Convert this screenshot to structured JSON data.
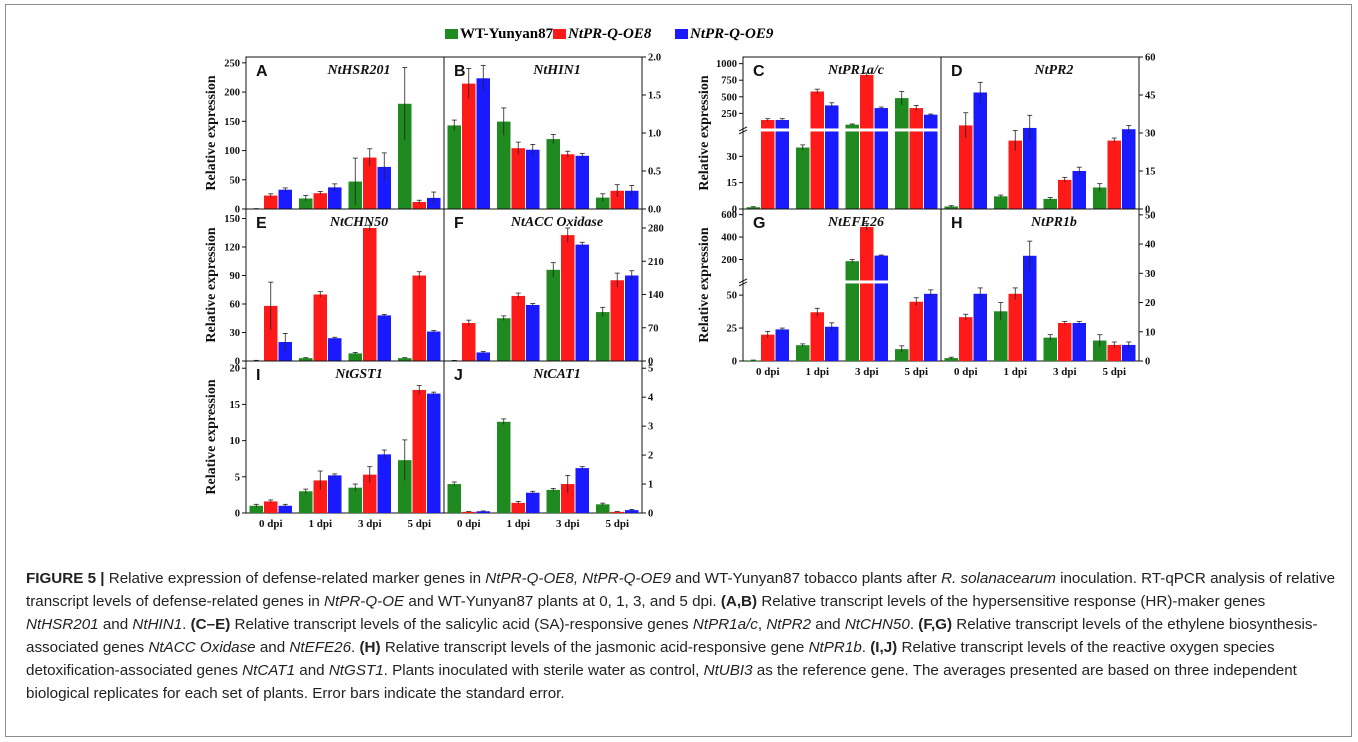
{
  "colors": {
    "WT": "#1f8a1f",
    "OE8": "#ff1a1a",
    "OE9": "#1a1aff"
  },
  "legend": [
    {
      "key": "WT",
      "label": "WT-Yunyan87",
      "italic": false
    },
    {
      "key": "OE8",
      "label": "NtPR-Q-OE8",
      "italic": true
    },
    {
      "key": "OE9",
      "label": "NtPR-Q-OE9",
      "italic": true
    }
  ],
  "ylabel": "Relative expression",
  "chart_data": [
    {
      "id": "A",
      "gene": "NtHSR201",
      "type": "bar",
      "categories": [
        "0 dpi",
        "1 dpi",
        "3 dpi",
        "5 dpi"
      ],
      "ylim": [
        0,
        260
      ],
      "ticks": [
        0,
        50,
        100,
        150,
        200,
        250
      ],
      "tick_labels": [
        "0",
        "50",
        "100",
        "150",
        "200",
        "250"
      ],
      "axis": "left",
      "series": [
        {
          "name": "WT-Yunyan87",
          "values": [
            0.5,
            18,
            47,
            180
          ],
          "err": [
            0.2,
            5,
            40,
            62
          ]
        },
        {
          "name": "NtPR-Q-OE8",
          "values": [
            23,
            27,
            88,
            12
          ],
          "err": [
            3,
            3,
            15,
            3
          ]
        },
        {
          "name": "NtPR-Q-OE9",
          "values": [
            33,
            37,
            72,
            19
          ],
          "err": [
            3,
            6,
            24,
            10
          ]
        }
      ]
    },
    {
      "id": "B",
      "gene": "NtHIN1",
      "type": "bar",
      "categories": [
        "0 dpi",
        "1 dpi",
        "3 dpi",
        "5 dpi"
      ],
      "ylim": [
        0,
        2.0
      ],
      "ticks": [
        0,
        0.5,
        1.0,
        1.5,
        2.0
      ],
      "tick_labels": [
        "0.0",
        "0.5",
        "1.0",
        "1.5",
        "2.0"
      ],
      "axis": "right",
      "series": [
        {
          "name": "WT-Yunyan87",
          "values": [
            1.1,
            1.15,
            0.92,
            0.15
          ],
          "err": [
            0.07,
            0.18,
            0.06,
            0.05
          ]
        },
        {
          "name": "NtPR-Q-OE8",
          "values": [
            1.65,
            0.8,
            0.72,
            0.24
          ],
          "err": [
            0.2,
            0.08,
            0.04,
            0.08
          ]
        },
        {
          "name": "NtPR-Q-OE9",
          "values": [
            1.72,
            0.78,
            0.7,
            0.24
          ],
          "err": [
            0.17,
            0.07,
            0.03,
            0.07
          ]
        }
      ]
    },
    {
      "id": "C",
      "gene": "NtPR1a/c",
      "type": "bar",
      "categories": [
        "0 dpi",
        "1 dpi",
        "3 dpi",
        "5 dpi"
      ],
      "broken_axis": {
        "lower": [
          0,
          45
        ],
        "upper": [
          0,
          1100
        ]
      },
      "ticks": [
        0,
        15,
        30,
        250,
        500,
        750,
        1000
      ],
      "tick_labels": [
        "0",
        "15",
        "30",
        "250",
        "500",
        "750",
        "1000"
      ],
      "axis": "left",
      "series": [
        {
          "name": "WT-Yunyan87",
          "values": [
            1,
            35,
            80,
            480
          ],
          "err": [
            0.3,
            1.5,
            10,
            100
          ]
        },
        {
          "name": "NtPR-Q-OE8",
          "values": [
            150,
            580,
            830,
            330
          ],
          "err": [
            20,
            35,
            30,
            40
          ]
        },
        {
          "name": "NtPR-Q-OE9",
          "values": [
            150,
            370,
            330,
            230
          ],
          "err": [
            20,
            40,
            15,
            10
          ]
        }
      ]
    },
    {
      "id": "D",
      "gene": "NtPR2",
      "type": "bar",
      "categories": [
        "0 dpi",
        "1 dpi",
        "3 dpi",
        "5 dpi"
      ],
      "ylim": [
        0,
        60
      ],
      "ticks": [
        0,
        15,
        30,
        45,
        60
      ],
      "tick_labels": [
        "0",
        "15",
        "30",
        "45",
        "60"
      ],
      "axis": "right",
      "series": [
        {
          "name": "WT-Yunyan87",
          "values": [
            1,
            5,
            4,
            8.5
          ],
          "err": [
            0.3,
            0.5,
            0.5,
            1.5
          ]
        },
        {
          "name": "NtPR-Q-OE8",
          "values": [
            33,
            27,
            11.5,
            27
          ],
          "err": [
            5,
            4,
            1,
            1
          ]
        },
        {
          "name": "NtPR-Q-OE9",
          "values": [
            46,
            32,
            15,
            31.5
          ],
          "err": [
            4,
            5,
            1.5,
            1.5
          ]
        }
      ]
    },
    {
      "id": "E",
      "gene": "NtCHN50",
      "type": "bar",
      "categories": [
        "0 dpi",
        "1 dpi",
        "3 dpi",
        "5 dpi"
      ],
      "ylim": [
        0,
        160
      ],
      "ticks": [
        0,
        30,
        60,
        90,
        120,
        150
      ],
      "tick_labels": [
        "0",
        "30",
        "60",
        "90",
        "120",
        "150"
      ],
      "axis": "left",
      "series": [
        {
          "name": "WT-Yunyan87",
          "values": [
            0.5,
            3,
            8,
            3
          ],
          "err": [
            0.2,
            0.5,
            1,
            0.5
          ]
        },
        {
          "name": "NtPR-Q-OE8",
          "values": [
            58,
            70,
            140,
            90
          ],
          "err": [
            25,
            3,
            3,
            4
          ]
        },
        {
          "name": "NtPR-Q-OE9",
          "values": [
            20,
            24,
            48,
            31
          ],
          "err": [
            9,
            1,
            1,
            1
          ]
        }
      ]
    },
    {
      "id": "F",
      "gene": "NtACC Oxidase",
      "type": "bar",
      "categories": [
        "0 dpi",
        "1 dpi",
        "3 dpi",
        "5 dpi"
      ],
      "ylim": [
        0,
        320
      ],
      "ticks": [
        0,
        70,
        140,
        210,
        280
      ],
      "tick_labels": [
        "0",
        "70",
        "140",
        "210",
        "280"
      ],
      "axis": "right",
      "series": [
        {
          "name": "WT-Yunyan87",
          "values": [
            1,
            90,
            192,
            103
          ],
          "err": [
            0.3,
            5,
            15,
            10
          ]
        },
        {
          "name": "NtPR-Q-OE8",
          "values": [
            80,
            137,
            265,
            170
          ],
          "err": [
            6,
            6,
            15,
            15
          ]
        },
        {
          "name": "NtPR-Q-OE9",
          "values": [
            18,
            118,
            245,
            180
          ],
          "err": [
            2,
            3,
            5,
            10
          ]
        }
      ]
    },
    {
      "id": "G",
      "gene": "NtEFE26",
      "type": "bar",
      "categories": [
        "0 dpi",
        "1 dpi",
        "3 dpi",
        "5 dpi"
      ],
      "broken_axis": {
        "lower": [
          0,
          60
        ],
        "upper": [
          0,
          650
        ]
      },
      "ticks": [
        0,
        25,
        50,
        200,
        400,
        600
      ],
      "tick_labels": [
        "0",
        "25",
        "50",
        "200",
        "400",
        "600"
      ],
      "axis": "left",
      "series": [
        {
          "name": "WT-Yunyan87",
          "values": [
            0.5,
            12,
            185,
            9
          ],
          "err": [
            0.2,
            1,
            15,
            2.5
          ]
        },
        {
          "name": "NtPR-Q-OE8",
          "values": [
            20,
            37,
            490,
            45
          ],
          "err": [
            2.5,
            3,
            30,
            3
          ]
        },
        {
          "name": "NtPR-Q-OE9",
          "values": [
            24,
            26,
            235,
            51
          ],
          "err": [
            1,
            3,
            5,
            3
          ]
        }
      ]
    },
    {
      "id": "H",
      "gene": "NtPR1b",
      "type": "bar",
      "categories": [
        "0 dpi",
        "1 dpi",
        "3 dpi",
        "5 dpi"
      ],
      "ylim": [
        0,
        52
      ],
      "ticks": [
        0,
        10,
        20,
        30,
        40,
        50
      ],
      "tick_labels": [
        "0",
        "10",
        "20",
        "30",
        "40",
        "50"
      ],
      "axis": "right",
      "series": [
        {
          "name": "WT-Yunyan87",
          "values": [
            1,
            17,
            8,
            7
          ],
          "err": [
            0.3,
            3,
            1,
            2
          ]
        },
        {
          "name": "NtPR-Q-OE8",
          "values": [
            15,
            23,
            13,
            5.5
          ],
          "err": [
            1,
            2,
            0.5,
            1
          ]
        },
        {
          "name": "NtPR-Q-OE9",
          "values": [
            23,
            36,
            13,
            5.5
          ],
          "err": [
            2,
            5,
            0.5,
            1
          ]
        }
      ]
    },
    {
      "id": "I",
      "gene": "NtGST1",
      "type": "bar",
      "categories": [
        "0 dpi",
        "1 dpi",
        "3 dpi",
        "5 dpi"
      ],
      "ylim": [
        0,
        21
      ],
      "ticks": [
        0,
        5,
        10,
        15,
        20
      ],
      "tick_labels": [
        "0",
        "5",
        "10",
        "15",
        "20"
      ],
      "axis": "left",
      "series": [
        {
          "name": "WT-Yunyan87",
          "values": [
            1,
            3,
            3.5,
            7.3
          ],
          "err": [
            0.2,
            0.3,
            0.5,
            2.8
          ]
        },
        {
          "name": "NtPR-Q-OE8",
          "values": [
            1.6,
            4.5,
            5.3,
            17
          ],
          "err": [
            0.2,
            1.3,
            1.1,
            0.6
          ]
        },
        {
          "name": "NtPR-Q-OE9",
          "values": [
            1,
            5.2,
            8.1,
            16.5
          ],
          "err": [
            0.2,
            0.2,
            0.6,
            0.2
          ]
        }
      ]
    },
    {
      "id": "J",
      "gene": "NtCAT1",
      "type": "bar",
      "categories": [
        "0 dpi",
        "1 dpi",
        "3 dpi",
        "5 dpi"
      ],
      "ylim": [
        0,
        5.25
      ],
      "ticks": [
        0,
        1,
        2,
        3,
        4,
        5
      ],
      "tick_labels": [
        "0",
        "1",
        "2",
        "3",
        "4",
        "5"
      ],
      "axis": "right",
      "series": [
        {
          "name": "WT-Yunyan87",
          "values": [
            1,
            3.15,
            0.8,
            0.3
          ],
          "err": [
            0.07,
            0.1,
            0.05,
            0.04
          ]
        },
        {
          "name": "NtPR-Q-OE8",
          "values": [
            0.04,
            0.35,
            1,
            0.04
          ],
          "err": [
            0.01,
            0.05,
            0.3,
            0.01
          ]
        },
        {
          "name": "NtPR-Q-OE9",
          "values": [
            0.06,
            0.7,
            1.55,
            0.1
          ],
          "err": [
            0.01,
            0.05,
            0.05,
            0.02
          ]
        }
      ]
    }
  ],
  "caption": [
    {
      "t": "FIGURE 5 |",
      "b": true
    },
    {
      "t": " Relative expression of defense-related marker genes in "
    },
    {
      "t": "NtPR-Q-OE8, NtPR-Q-OE9",
      "i": true
    },
    {
      "t": " and WT-Yunyan87 tobacco plants after "
    },
    {
      "t": "R. solanacearum",
      "i": true
    },
    {
      "t": " inoculation. RT-qPCR analysis of relative transcript levels of defense-related genes in "
    },
    {
      "t": "NtPR-Q-OE",
      "i": true
    },
    {
      "t": " and WT-Yunyan87 plants at 0, 1, 3, and 5 dpi. "
    },
    {
      "t": "(A,B)",
      "b": true
    },
    {
      "t": " Relative transcript levels of the hypersensitive response (HR)-maker genes "
    },
    {
      "t": "NtHSR201",
      "i": true
    },
    {
      "t": " and "
    },
    {
      "t": "NtHIN1",
      "i": true
    },
    {
      "t": ". "
    },
    {
      "t": "(C–E)",
      "b": true
    },
    {
      "t": " Relative transcript levels of the salicylic acid (SA)-responsive genes "
    },
    {
      "t": "NtPR1a/c",
      "i": true
    },
    {
      "t": ", "
    },
    {
      "t": "NtPR2",
      "i": true
    },
    {
      "t": " and "
    },
    {
      "t": "NtCHN50",
      "i": true
    },
    {
      "t": ". "
    },
    {
      "t": "(F,G)",
      "b": true
    },
    {
      "t": " Relative transcript levels of the ethylene biosynthesis-associated genes "
    },
    {
      "t": "NtACC Oxidase",
      "i": true
    },
    {
      "t": " and "
    },
    {
      "t": "NtEFE26",
      "i": true
    },
    {
      "t": ". "
    },
    {
      "t": "(H)",
      "b": true
    },
    {
      "t": " Relative transcript levels of the jasmonic acid-responsive gene "
    },
    {
      "t": "NtPR1b",
      "i": true
    },
    {
      "t": ". "
    },
    {
      "t": "(I,J)",
      "b": true
    },
    {
      "t": " Relative transcript levels of the reactive oxygen species detoxification-associated genes "
    },
    {
      "t": "NtCAT1",
      "i": true
    },
    {
      "t": " and "
    },
    {
      "t": "NtGST1",
      "i": true
    },
    {
      "t": ". Plants inoculated with sterile water as control, "
    },
    {
      "t": "NtUBI3",
      "i": true
    },
    {
      "t": " as the reference gene. The averages presented are based on three independent biological replicates for each set of plants. Error bars indicate the standard error."
    }
  ]
}
